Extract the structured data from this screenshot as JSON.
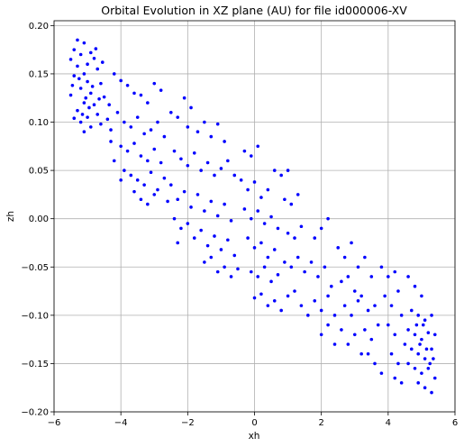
{
  "chart_data": {
    "type": "scatter",
    "title": "Orbital Evolution in XZ plane (AU) for file id000006-XV",
    "xlabel": "xh",
    "ylabel": "zh",
    "xlim": [
      -6,
      6
    ],
    "ylim": [
      -0.2,
      0.205
    ],
    "xticks": [
      -6,
      -4,
      -2,
      0,
      2,
      4,
      6
    ],
    "xtick_labels": [
      "−6",
      "−4",
      "−2",
      "0",
      "2",
      "4",
      "6"
    ],
    "yticks": [
      -0.2,
      -0.15,
      -0.1,
      -0.05,
      0.0,
      0.05,
      0.1,
      0.15,
      0.2
    ],
    "ytick_labels": [
      "−0.20",
      "−0.15",
      "−0.10",
      "−0.05",
      "0.00",
      "0.05",
      "0.10",
      "0.15",
      "0.20"
    ],
    "grid": true,
    "marker_color": "#0000ff",
    "series": [
      {
        "marker": "point",
        "points": [
          [
            -5.3,
            0.185
          ],
          [
            -5.1,
            0.182
          ],
          [
            -5.4,
            0.175
          ],
          [
            -5.2,
            0.17
          ],
          [
            -4.9,
            0.172
          ],
          [
            -5.5,
            0.165
          ],
          [
            -5.0,
            0.16
          ],
          [
            -4.8,
            0.166
          ],
          [
            -5.3,
            0.158
          ],
          [
            -5.1,
            0.15
          ],
          [
            -4.7,
            0.155
          ],
          [
            -5.4,
            0.148
          ],
          [
            -5.0,
            0.142
          ],
          [
            -4.6,
            0.14
          ],
          [
            -5.2,
            0.135
          ],
          [
            -4.9,
            0.13
          ],
          [
            -5.5,
            0.128
          ],
          [
            -4.5,
            0.126
          ],
          [
            -5.1,
            0.12
          ],
          [
            -4.8,
            0.118
          ],
          [
            -5.3,
            0.112
          ],
          [
            -4.7,
            0.108
          ],
          [
            -5.0,
            0.105
          ],
          [
            -4.4,
            0.103
          ],
          [
            -5.2,
            0.1
          ],
          [
            -4.6,
            0.098
          ],
          [
            -4.9,
            0.095
          ],
          [
            -5.4,
            0.104
          ],
          [
            -4.3,
            0.092
          ],
          [
            -5.1,
            0.09
          ],
          [
            -4.75,
            0.176
          ],
          [
            -4.95,
            0.115
          ],
          [
            -5.25,
            0.145
          ],
          [
            -4.55,
            0.162
          ],
          [
            -5.15,
            0.108
          ],
          [
            -4.85,
            0.137
          ],
          [
            -5.45,
            0.138
          ],
          [
            -4.65,
            0.124
          ],
          [
            -5.05,
            0.125
          ],
          [
            -4.35,
            0.118
          ],
          [
            -4.2,
            0.15
          ],
          [
            -4.0,
            0.143
          ],
          [
            -3.8,
            0.138
          ],
          [
            -3.6,
            0.13
          ],
          [
            -3.4,
            0.128
          ],
          [
            -3.2,
            0.12
          ],
          [
            -3.0,
            0.14
          ],
          [
            -2.8,
            0.133
          ],
          [
            -4.1,
            0.11
          ],
          [
            -3.9,
            0.1
          ],
          [
            -3.7,
            0.095
          ],
          [
            -3.5,
            0.105
          ],
          [
            -3.3,
            0.088
          ],
          [
            -3.1,
            0.092
          ],
          [
            -2.9,
            0.1
          ],
          [
            -2.7,
            0.085
          ],
          [
            -4.3,
            0.08
          ],
          [
            -4.0,
            0.075
          ],
          [
            -3.8,
            0.07
          ],
          [
            -3.6,
            0.078
          ],
          [
            -3.4,
            0.065
          ],
          [
            -3.2,
            0.06
          ],
          [
            -3.0,
            0.072
          ],
          [
            -2.8,
            0.058
          ],
          [
            -4.2,
            0.06
          ],
          [
            -3.9,
            0.05
          ],
          [
            -3.7,
            0.045
          ],
          [
            -3.5,
            0.04
          ],
          [
            -3.3,
            0.035
          ],
          [
            -3.1,
            0.048
          ],
          [
            -2.9,
            0.03
          ],
          [
            -2.7,
            0.042
          ],
          [
            -4.0,
            0.04
          ],
          [
            -3.6,
            0.028
          ],
          [
            -3.4,
            0.02
          ],
          [
            -3.2,
            0.015
          ],
          [
            -3.0,
            0.025
          ],
          [
            -2.6,
            0.018
          ],
          [
            -2.5,
            0.11
          ],
          [
            -2.3,
            0.105
          ],
          [
            -2.1,
            0.125
          ],
          [
            -2.0,
            0.095
          ],
          [
            -1.9,
            0.115
          ],
          [
            -1.7,
            0.09
          ],
          [
            -1.5,
            0.1
          ],
          [
            -1.3,
            0.085
          ],
          [
            -1.1,
            0.098
          ],
          [
            -0.9,
            0.08
          ],
          [
            -2.4,
            0.07
          ],
          [
            -2.2,
            0.062
          ],
          [
            -2.0,
            0.055
          ],
          [
            -1.8,
            0.068
          ],
          [
            -1.6,
            0.05
          ],
          [
            -1.4,
            0.058
          ],
          [
            -1.2,
            0.045
          ],
          [
            -1.0,
            0.052
          ],
          [
            -0.8,
            0.06
          ],
          [
            -0.6,
            0.045
          ],
          [
            -2.5,
            0.035
          ],
          [
            -2.3,
            0.02
          ],
          [
            -2.1,
            0.028
          ],
          [
            -1.9,
            0.012
          ],
          [
            -1.7,
            0.025
          ],
          [
            -1.5,
            0.008
          ],
          [
            -1.3,
            0.018
          ],
          [
            -1.1,
            0.003
          ],
          [
            -0.9,
            0.015
          ],
          [
            -0.7,
            -0.002
          ],
          [
            -2.4,
            0.0
          ],
          [
            -2.2,
            -0.01
          ],
          [
            -2.0,
            -0.005
          ],
          [
            -1.8,
            -0.02
          ],
          [
            -1.6,
            -0.012
          ],
          [
            -1.4,
            -0.028
          ],
          [
            -1.2,
            -0.018
          ],
          [
            -1.0,
            -0.032
          ],
          [
            -0.8,
            -0.022
          ],
          [
            -0.6,
            -0.038
          ],
          [
            -2.3,
            -0.025
          ],
          [
            -1.5,
            -0.045
          ],
          [
            -1.3,
            -0.04
          ],
          [
            -1.1,
            -0.055
          ],
          [
            -0.9,
            -0.05
          ],
          [
            -0.7,
            -0.06
          ],
          [
            -0.5,
            -0.052
          ],
          [
            -0.3,
            0.07
          ],
          [
            -0.1,
            0.065
          ],
          [
            0.1,
            0.075
          ],
          [
            -0.4,
            0.04
          ],
          [
            -0.2,
            0.03
          ],
          [
            0.0,
            0.038
          ],
          [
            0.2,
            0.022
          ],
          [
            0.4,
            0.03
          ],
          [
            -0.3,
            0.01
          ],
          [
            -0.1,
            0.0
          ],
          [
            0.1,
            0.008
          ],
          [
            0.3,
            -0.005
          ],
          [
            0.5,
            0.002
          ],
          [
            -0.2,
            -0.02
          ],
          [
            0.0,
            -0.03
          ],
          [
            0.2,
            -0.025
          ],
          [
            0.4,
            -0.04
          ],
          [
            0.6,
            -0.032
          ],
          [
            -0.1,
            -0.055
          ],
          [
            0.1,
            -0.06
          ],
          [
            0.3,
            -0.05
          ],
          [
            0.5,
            -0.065
          ],
          [
            0.7,
            -0.058
          ],
          [
            0.0,
            -0.082
          ],
          [
            0.2,
            -0.078
          ],
          [
            0.4,
            -0.09
          ],
          [
            0.6,
            -0.085
          ],
          [
            0.8,
            -0.095
          ],
          [
            0.6,
            0.05
          ],
          [
            0.8,
            0.045
          ],
          [
            1.0,
            0.05
          ],
          [
            0.9,
            0.02
          ],
          [
            1.1,
            0.015
          ],
          [
            1.3,
            0.025
          ],
          [
            0.7,
            -0.01
          ],
          [
            1.0,
            -0.015
          ],
          [
            1.2,
            -0.02
          ],
          [
            1.4,
            -0.008
          ],
          [
            0.9,
            -0.045
          ],
          [
            1.1,
            -0.05
          ],
          [
            1.3,
            -0.04
          ],
          [
            1.5,
            -0.055
          ],
          [
            1.0,
            -0.08
          ],
          [
            1.2,
            -0.075
          ],
          [
            1.4,
            -0.09
          ],
          [
            1.6,
            -0.1
          ],
          [
            1.8,
            -0.02
          ],
          [
            2.0,
            -0.01
          ],
          [
            2.2,
            0.0
          ],
          [
            1.7,
            -0.045
          ],
          [
            1.9,
            -0.06
          ],
          [
            2.1,
            -0.05
          ],
          [
            2.3,
            -0.07
          ],
          [
            1.8,
            -0.085
          ],
          [
            2.0,
            -0.095
          ],
          [
            2.2,
            -0.08
          ],
          [
            2.4,
            -0.1
          ],
          [
            2.0,
            -0.12
          ],
          [
            2.2,
            -0.11
          ],
          [
            2.4,
            -0.13
          ],
          [
            2.6,
            -0.115
          ],
          [
            2.5,
            -0.03
          ],
          [
            2.7,
            -0.04
          ],
          [
            2.9,
            -0.025
          ],
          [
            2.6,
            -0.065
          ],
          [
            2.8,
            -0.06
          ],
          [
            3.0,
            -0.075
          ],
          [
            2.7,
            -0.09
          ],
          [
            2.9,
            -0.1
          ],
          [
            3.1,
            -0.085
          ],
          [
            2.8,
            -0.13
          ],
          [
            3.0,
            -0.12
          ],
          [
            3.2,
            -0.14
          ],
          [
            3.1,
            -0.05
          ],
          [
            3.3,
            -0.04
          ],
          [
            3.5,
            -0.06
          ],
          [
            3.2,
            -0.08
          ],
          [
            3.4,
            -0.095
          ],
          [
            3.6,
            -0.09
          ],
          [
            3.3,
            -0.115
          ],
          [
            3.5,
            -0.125
          ],
          [
            3.7,
            -0.11
          ],
          [
            3.4,
            -0.14
          ],
          [
            3.6,
            -0.15
          ],
          [
            3.8,
            -0.16
          ],
          [
            3.8,
            -0.05
          ],
          [
            4.0,
            -0.06
          ],
          [
            4.2,
            -0.055
          ],
          [
            3.9,
            -0.08
          ],
          [
            4.1,
            -0.09
          ],
          [
            4.3,
            -0.075
          ],
          [
            4.0,
            -0.11
          ],
          [
            4.2,
            -0.12
          ],
          [
            4.4,
            -0.1
          ],
          [
            4.1,
            -0.14
          ],
          [
            4.3,
            -0.15
          ],
          [
            4.5,
            -0.13
          ],
          [
            4.2,
            -0.165
          ],
          [
            4.4,
            -0.17
          ],
          [
            4.6,
            -0.06
          ],
          [
            4.8,
            -0.07
          ],
          [
            5.0,
            -0.08
          ],
          [
            4.7,
            -0.095
          ],
          [
            4.9,
            -0.1
          ],
          [
            5.1,
            -0.105
          ],
          [
            5.3,
            -0.1
          ],
          [
            4.6,
            -0.115
          ],
          [
            4.8,
            -0.12
          ],
          [
            5.0,
            -0.125
          ],
          [
            5.2,
            -0.118
          ],
          [
            5.4,
            -0.12
          ],
          [
            4.7,
            -0.135
          ],
          [
            4.9,
            -0.14
          ],
          [
            5.1,
            -0.145
          ],
          [
            5.3,
            -0.135
          ],
          [
            4.6,
            -0.15
          ],
          [
            4.8,
            -0.155
          ],
          [
            5.0,
            -0.16
          ],
          [
            5.2,
            -0.155
          ],
          [
            5.4,
            -0.165
          ],
          [
            4.9,
            -0.17
          ],
          [
            5.1,
            -0.175
          ],
          [
            5.3,
            -0.18
          ],
          [
            5.05,
            -0.11
          ],
          [
            4.95,
            -0.13
          ],
          [
            5.15,
            -0.135
          ],
          [
            5.25,
            -0.15
          ],
          [
            4.85,
            -0.11
          ],
          [
            5.35,
            -0.145
          ]
        ]
      }
    ]
  }
}
